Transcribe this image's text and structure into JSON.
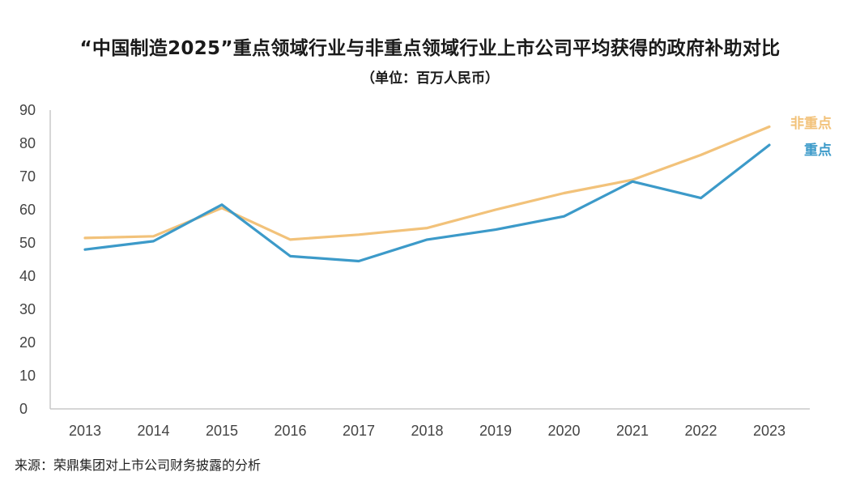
{
  "title": "“中国制造2025”重点领域行业与非重点领域行业上市公司平均获得的政府补助对比",
  "subtitle": "（单位：百万人民币）",
  "source": "来源：荣鼎集团对上市公司财务披露的分析",
  "chart_data": {
    "type": "line",
    "x": [
      "2013",
      "2014",
      "2015",
      "2016",
      "2017",
      "2018",
      "2019",
      "2020",
      "2021",
      "2022",
      "2023"
    ],
    "ylim": [
      0,
      90
    ],
    "yticks": [
      "0",
      "10",
      "20",
      "30",
      "40",
      "50",
      "60",
      "70",
      "80",
      "90"
    ],
    "grid": false,
    "legend": "right-end",
    "series": [
      {
        "name": "非重点",
        "color": "#F2C27A",
        "values": [
          51.5,
          52,
          60.5,
          51,
          52.5,
          54.5,
          60,
          65,
          69,
          76.5,
          85
        ]
      },
      {
        "name": "重点",
        "color": "#3C9AC9",
        "values": [
          48,
          50.5,
          61.5,
          46,
          44.5,
          51,
          54,
          58,
          68.5,
          63.5,
          79.5
        ]
      }
    ]
  }
}
